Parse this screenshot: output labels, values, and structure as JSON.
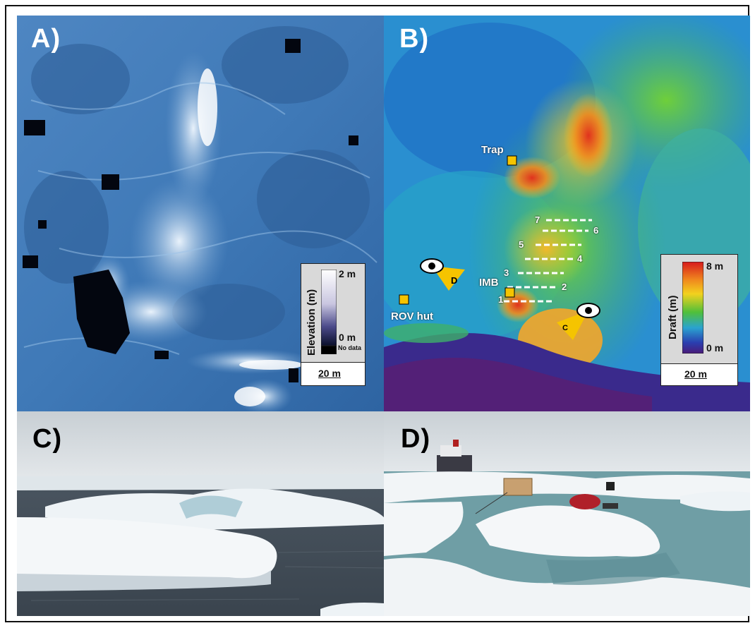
{
  "panels": {
    "a": {
      "label": "A)"
    },
    "b": {
      "label": "B)"
    },
    "c": {
      "label": "C)"
    },
    "d": {
      "label": "D)"
    }
  },
  "elevation_legend": {
    "title": "Elevation (m)",
    "max": "2 m",
    "min": "0 m",
    "nodata": "No data",
    "scale": "20 m"
  },
  "draft_legend": {
    "title": "Draft (m)",
    "max": "8 m",
    "min": "0 m",
    "scale": "20 m"
  },
  "map_labels": {
    "trap": "Trap",
    "imb": "IMB",
    "rov_hut": "ROV hut",
    "view_c": "C",
    "view_d": "D"
  },
  "transects": [
    "1",
    "2",
    "3",
    "4",
    "5",
    "6",
    "7"
  ],
  "colors": {
    "elevation_low": "#0a0f2a",
    "elevation_high": "#ffffff",
    "marker_yellow": "#f5c400"
  }
}
